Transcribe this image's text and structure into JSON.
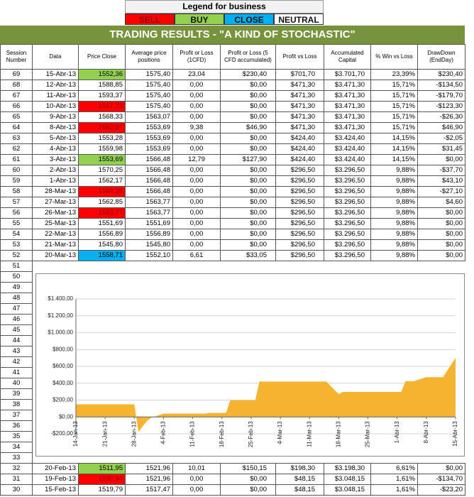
{
  "legend": {
    "title": "Legend for business",
    "items": [
      {
        "label": "SELL",
        "color": "#ff0000"
      },
      {
        "label": "BUY",
        "color": "#92d050"
      },
      {
        "label": "CLOSE",
        "color": "#00b0f0"
      },
      {
        "label": "NEUTRAL",
        "color": "#ffffff"
      }
    ]
  },
  "title": "TRADING RESULTS - \"A KIND OF STOCHASTIC\"",
  "table": {
    "headers": [
      "Session Number",
      "Data",
      "Price Close",
      "Average price positions",
      "Profit or Loss (1CFD)",
      "Profit or Loss (5 CFD accumulated)",
      "Profit vs Loss",
      "Accumulated Capital",
      "% Win vs Loss",
      "DrawDown (EndDay)"
    ],
    "rows": [
      [
        "69",
        "15-Abr-13",
        "1552,36",
        "1575,40",
        "23,04",
        "$230,40",
        "$701,70",
        "$3.701,70",
        "23,39%",
        "$230,40"
      ],
      [
        "68",
        "12-Abr-13",
        "1588,85",
        "1575,40",
        "0,00",
        "$0,00",
        "$471,30",
        "$3.471,30",
        "15,71%",
        "-$134,50"
      ],
      [
        "67",
        "11-Abr-13",
        "1593,37",
        "1575,40",
        "0,00",
        "$0,00",
        "$471,30",
        "$3.471,30",
        "15,71%",
        "-$179,70"
      ],
      [
        "66",
        "10-Abr-13",
        "1567,73",
        "1575,40",
        "0,00",
        "$0,00",
        "$471,30",
        "$3.471,30",
        "15,71%",
        "-$123,30"
      ],
      [
        "65",
        "9-Abr-13",
        "1568,33",
        "1563,07",
        "0,00",
        "$0,00",
        "$471,30",
        "$3.471,30",
        "15,71%",
        "-$26,30"
      ],
      [
        "64",
        "8-Abr-13",
        "1563,07",
        "1553,69",
        "9,38",
        "$46,90",
        "$471,30",
        "$3.471,30",
        "15,71%",
        "$46,90"
      ],
      [
        "63",
        "5-Abr-13",
        "1553,28",
        "1553,69",
        "0,00",
        "$0,00",
        "$424,40",
        "$3.424,40",
        "14,15%",
        "-$2,05"
      ],
      [
        "62",
        "4-Abr-13",
        "1559,98",
        "1553,69",
        "0,00",
        "$0,00",
        "$424,40",
        "$3.424,40",
        "14,15%",
        "$31,45"
      ],
      [
        "61",
        "3-Abr-13",
        "1553,69",
        "1566,48",
        "12,79",
        "$127,90",
        "$424,40",
        "$3.424,40",
        "14,15%",
        "$0,00"
      ],
      [
        "60",
        "2-Abr-13",
        "1570,25",
        "1566,48",
        "0,00",
        "$0,00",
        "$296,50",
        "$3.296,50",
        "9,88%",
        "-$37,70"
      ],
      [
        "59",
        "1-Abr-13",
        "1562,17",
        "1566,48",
        "0,00",
        "$0,00",
        "$296,50",
        "$3.296,50",
        "9,88%",
        "$43,10"
      ],
      [
        "58",
        "28-Mar-13",
        "1569,19",
        "1566,48",
        "0,00",
        "$0,00",
        "$296,50",
        "$3.296,50",
        "9,88%",
        "-$27,10"
      ],
      [
        "57",
        "27-Mar-13",
        "1562,85",
        "1563,77",
        "0,00",
        "$0,00",
        "$296,50",
        "$3.296,50",
        "9,88%",
        "$4,60"
      ],
      [
        "56",
        "26-Mar-13",
        "1563,77",
        "1563,77",
        "0,00",
        "$0,00",
        "$296,50",
        "$3.296,50",
        "9,88%",
        "$0,00"
      ],
      [
        "55",
        "25-Mar-13",
        "1551,69",
        "1551,69",
        "0,00",
        "$0,00",
        "$296,50",
        "$3.296,50",
        "9,88%",
        "$0,00"
      ],
      [
        "54",
        "22-Mar-13",
        "1556,89",
        "1556,89",
        "0,00",
        "$0,00",
        "$296,50",
        "$3.296,50",
        "9,88%",
        "$0,00"
      ],
      [
        "53",
        "21-Mar-13",
        "1545,80",
        "1545,80",
        "0,00",
        "$0,00",
        "$296,50",
        "$3.296,50",
        "9,88%",
        "$0,00"
      ],
      [
        "52",
        "20-Mar-13",
        "1558,71",
        "1552,10",
        "6,61",
        "$33,05",
        "$296,50",
        "$3.296,50",
        "9,88%",
        "$0,00"
      ],
      [
        "51"
      ],
      [
        "50"
      ],
      [
        "49"
      ],
      [
        "48"
      ],
      [
        "47"
      ],
      [
        "46"
      ],
      [
        "45"
      ],
      [
        "44"
      ],
      [
        "43"
      ],
      [
        "42"
      ],
      [
        "41"
      ],
      [
        "40"
      ],
      [
        "39"
      ],
      [
        "38"
      ],
      [
        "37"
      ],
      [
        "36"
      ],
      [
        "35"
      ],
      [
        "34"
      ],
      [
        "33"
      ],
      [
        "32",
        "20-Feb-13",
        "1511,95",
        "1521,96",
        "10,01",
        "$150,15",
        "$198,30",
        "$3.198,30",
        "6,61%",
        "$0,00"
      ],
      [
        "31",
        "19-Feb-13",
        "1530,94",
        "1521,96",
        "0,00",
        "$0,00",
        "$48,15",
        "$3.048,15",
        "1,61%",
        "-$134,70"
      ],
      [
        "30",
        "15-Feb-13",
        "1519,79",
        "1517,47",
        "0,00",
        "$0,00",
        "$48,15",
        "$3.048,15",
        "1,61%",
        "-$23,20"
      ]
    ],
    "price_colors": [
      "#92d050",
      null,
      null,
      "#ff0000",
      null,
      "#ff0000",
      null,
      null,
      "#92d050",
      null,
      null,
      "#ff0000",
      null,
      "#ff0000",
      null,
      null,
      null,
      "#00b0f0",
      null,
      null,
      null,
      null,
      null,
      null,
      null,
      null,
      null,
      null,
      null,
      null,
      null,
      null,
      null,
      null,
      null,
      null,
      null,
      "#92d050",
      "#ff0000",
      null
    ]
  },
  "chart_data": {
    "type": "area",
    "x": [
      "2013-01-14",
      "2013-01-28",
      "2013-01-29",
      "2013-01-30",
      "2013-01-31",
      "2013-02-01",
      "2013-02-04",
      "2013-02-14",
      "2013-02-15",
      "2013-02-19",
      "2013-02-20",
      "2013-02-26",
      "2013-02-27",
      "2013-03-15",
      "2013-03-18",
      "2013-03-19",
      "2013-04-02",
      "2013-04-03",
      "2013-04-05",
      "2013-04-08",
      "2013-04-12",
      "2013-04-15"
    ],
    "series": [
      {
        "color": "#f5b32f",
        "values": [
          150,
          150,
          -180,
          -110,
          -50,
          -10,
          40,
          40,
          48.15,
          48.15,
          198.3,
          198.3,
          420,
          420,
          270,
          296.5,
          296.5,
          424.4,
          424.4,
          471.3,
          471.3,
          701.7
        ]
      }
    ],
    "xlim": [
      "2013-01-14",
      "2013-04-15"
    ],
    "xticks": [
      {
        "value": "2013-01-14",
        "label": "14-Jan-13"
      },
      {
        "value": "2013-01-21",
        "label": "21-Jan-13"
      },
      {
        "value": "2013-01-28",
        "label": "28-Jan-13"
      },
      {
        "value": "2013-02-04",
        "label": "4-Feb-13"
      },
      {
        "value": "2013-02-11",
        "label": "11-Feb-13"
      },
      {
        "value": "2013-02-18",
        "label": "18-Feb-13"
      },
      {
        "value": "2013-02-25",
        "label": "25-Feb-13"
      },
      {
        "value": "2013-03-04",
        "label": "4-Mar-13"
      },
      {
        "value": "2013-03-11",
        "label": "11-Mar-13"
      },
      {
        "value": "2013-03-18",
        "label": "18-Mar-13"
      },
      {
        "value": "2013-03-25",
        "label": "25-Mar-13"
      },
      {
        "value": "2013-04-01",
        "label": "1-Abr-13"
      },
      {
        "value": "2013-04-08",
        "label": "8-Abr-13"
      },
      {
        "value": "2013-04-15",
        "label": "15-Abr-13"
      }
    ],
    "ylim": [
      -200,
      1400
    ],
    "yticks": [
      {
        "value": -200,
        "label": "-$200,00"
      },
      {
        "value": 0,
        "label": "$0,00"
      },
      {
        "value": 200,
        "label": "$200,00"
      },
      {
        "value": 400,
        "label": "$400,00"
      },
      {
        "value": 600,
        "label": "$600,00"
      },
      {
        "value": 800,
        "label": "$800,00"
      },
      {
        "value": 1000,
        "label": "$1.000,00"
      },
      {
        "value": 1200,
        "label": "$1.200,00"
      },
      {
        "value": 1400,
        "label": "$1.400,00"
      }
    ],
    "grid": true
  }
}
